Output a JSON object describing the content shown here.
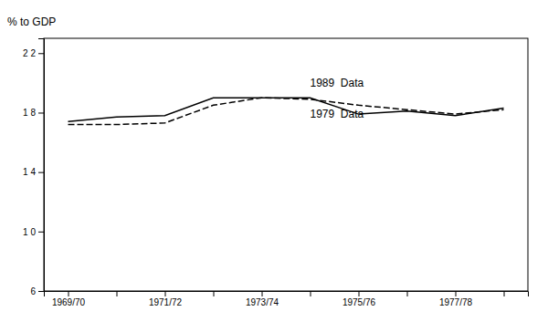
{
  "chart_data": {
    "type": "line",
    "y_label": "% to GDP",
    "categories": [
      "1969/70",
      null,
      "1971/72",
      null,
      "1973/74",
      null,
      "1975/76",
      null,
      "1977/78",
      null
    ],
    "series": [
      {
        "name": "1989  Data",
        "color": "#000000",
        "line_style": "solid",
        "values": [
          17.4,
          17.7,
          17.8,
          19.0,
          19.0,
          19.0,
          17.9,
          18.1,
          17.8,
          18.3
        ]
      },
      {
        "name": "1979  Data",
        "color": "#000000",
        "line_style": "dashed",
        "values": [
          17.2,
          17.2,
          17.3,
          18.5,
          19.0,
          18.9,
          18.5,
          18.2,
          17.9,
          18.2
        ]
      }
    ],
    "ylim": [
      6,
      23
    ],
    "yticks": [
      6,
      {
        "value": 10,
        "label": "1 0"
      },
      {
        "value": 14,
        "label": "1 4"
      },
      {
        "value": 18,
        "label": "1 8"
      },
      {
        "value": 22,
        "label": "2 2"
      }
    ],
    "grid": false
  }
}
